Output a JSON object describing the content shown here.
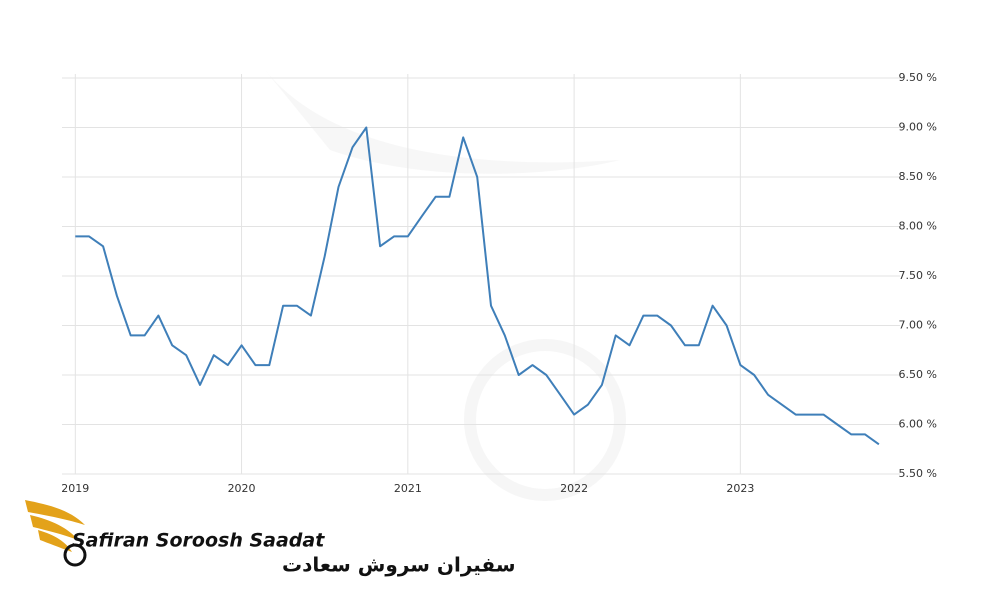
{
  "chart_data": {
    "type": "line",
    "x": [
      2019,
      2019.083,
      2019.167,
      2019.25,
      2019.333,
      2019.417,
      2019.5,
      2019.583,
      2019.667,
      2019.75,
      2019.833,
      2019.917,
      2020,
      2020.083,
      2020.167,
      2020.25,
      2020.333,
      2020.417,
      2020.5,
      2020.583,
      2020.667,
      2020.75,
      2020.833,
      2020.917,
      2021,
      2021.083,
      2021.167,
      2021.25,
      2021.333,
      2021.417,
      2021.5,
      2021.583,
      2021.667,
      2021.75,
      2021.833,
      2021.917,
      2022,
      2022.083,
      2022.167,
      2022.25,
      2022.333,
      2022.417,
      2022.5,
      2022.583,
      2022.667,
      2022.75,
      2022.833,
      2022.917,
      2023,
      2023.083,
      2023.167,
      2023.25,
      2023.333,
      2023.417,
      2023.5,
      2023.583,
      2023.667,
      2023.75,
      2023.833
    ],
    "values": [
      7.9,
      7.9,
      7.8,
      7.3,
      6.9,
      6.9,
      7.1,
      6.8,
      6.7,
      6.4,
      6.7,
      6.6,
      6.8,
      6.6,
      6.6,
      7.2,
      7.2,
      7.1,
      7.7,
      8.4,
      8.8,
      9.0,
      7.8,
      7.9,
      7.9,
      8.1,
      8.3,
      8.3,
      8.9,
      8.5,
      7.2,
      6.9,
      6.5,
      6.6,
      6.5,
      6.3,
      6.1,
      6.2,
      6.4,
      6.9,
      6.8,
      7.1,
      7.1,
      7.0,
      6.8,
      6.8,
      7.2,
      7.0,
      6.6,
      6.5,
      6.3,
      6.2,
      6.1,
      6.1,
      6.1,
      6.0,
      5.9,
      5.9,
      5.8
    ],
    "color": "#3f7fb9",
    "xlim": [
      2018.92,
      2023.9
    ],
    "xticks": [
      2019,
      2020,
      2021,
      2022,
      2023
    ],
    "ylim": [
      5.5,
      9.5
    ],
    "yticks": [
      {
        "value": 5.5,
        "label": "5.50 %"
      },
      {
        "value": 6,
        "label": "6.00 %"
      },
      {
        "value": 6.5,
        "label": "6.50 %"
      },
      {
        "value": 7,
        "label": "7.00 %"
      },
      {
        "value": 7.5,
        "label": "7.50 %"
      },
      {
        "value": 8,
        "label": "8.00 %"
      },
      {
        "value": 8.5,
        "label": "8.50 %"
      },
      {
        "value": 9,
        "label": "9.00 %"
      },
      {
        "value": 9.5,
        "label": "9.50 %"
      }
    ],
    "grid": true
  },
  "watermark": {
    "brand": "Safiran Soroosh Saadat",
    "brand_fa": "سفیران سروش سعادت"
  }
}
